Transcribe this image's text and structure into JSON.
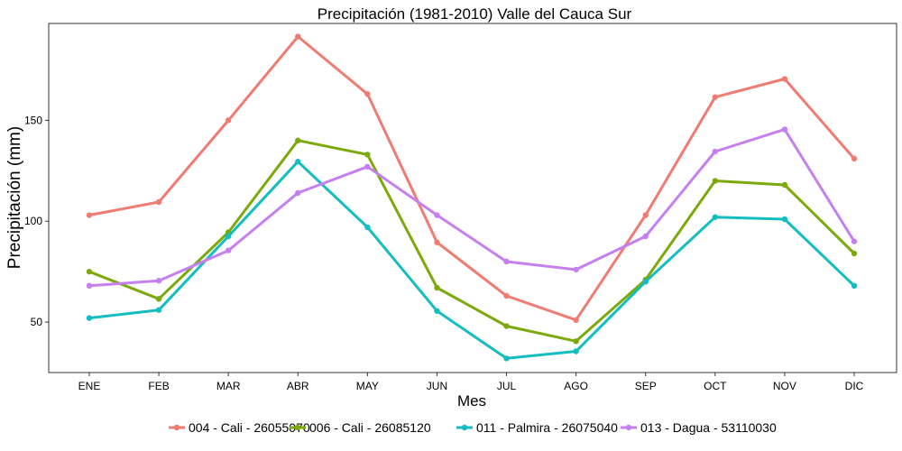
{
  "chart_data": {
    "type": "line",
    "title": "Precipitación (1981-2010)  Valle del Cauca Sur",
    "xlabel": "Mes",
    "ylabel": "Precipitación (mm)",
    "categories": [
      "ENE",
      "FEB",
      "MAR",
      "ABR",
      "MAY",
      "JUN",
      "JUL",
      "AGO",
      "SEP",
      "OCT",
      "NOV",
      "DIC"
    ],
    "ylim": [
      25,
      198
    ],
    "yticks": [
      50,
      100,
      150
    ],
    "grid": false,
    "legend_position": "bottom",
    "series": [
      {
        "name": "004 - Cali - 26055070",
        "color": "#ef7b73",
        "values": [
          103,
          109.5,
          150,
          191.5,
          163,
          89.5,
          63,
          51,
          103,
          161.5,
          170.5,
          131
        ]
      },
      {
        "name": "006 - Cali - 26085120",
        "color": "#7caa0c",
        "values": [
          75,
          61.5,
          94.5,
          140,
          133,
          67,
          48,
          40.5,
          71,
          120,
          118,
          84
        ]
      },
      {
        "name": "011 - Palmira - 26075040",
        "color": "#13bdc0",
        "values": [
          52,
          56,
          92.5,
          129.5,
          97,
          55.5,
          32,
          35.5,
          70,
          102,
          101,
          68
        ]
      },
      {
        "name": "013 - Dagua - 53110030",
        "color": "#c57ff0",
        "values": [
          68,
          70.5,
          85.5,
          114,
          127,
          103,
          80,
          76,
          92.5,
          134.5,
          145.5,
          90
        ]
      }
    ]
  }
}
